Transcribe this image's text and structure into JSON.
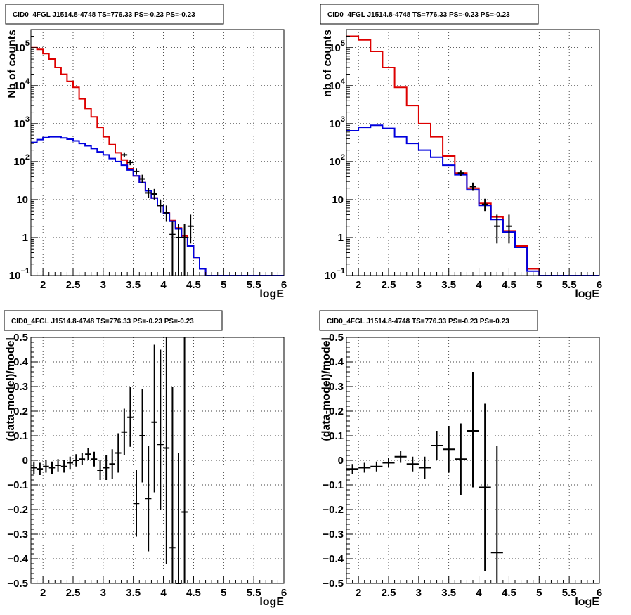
{
  "chart_data": [
    {
      "type": "line",
      "title": "CID0_4FGL J1514.8-4748 TS=776.33 PS=-0.23 PS=-0.23",
      "xlabel": "logE",
      "ylabel": "Nb of counts",
      "xlim": [
        1.8,
        6.0
      ],
      "ylim": [
        0.1,
        300000
      ],
      "yscale": "log",
      "grid": true,
      "xticks": [
        2,
        2.5,
        3,
        3.5,
        4,
        4.5,
        5,
        5.5,
        6
      ],
      "xtick_labels": [
        "2",
        "2.5",
        "3",
        "3.5",
        "4",
        "4.5",
        "5",
        "5.5",
        "6"
      ],
      "yticks": [
        0.1,
        1,
        10,
        100,
        1000,
        10000,
        100000
      ],
      "ytick_labels": [
        {
          "base": "10",
          "exp": "−1"
        },
        {
          "base": "1",
          "exp": ""
        },
        {
          "base": "10",
          "exp": ""
        },
        {
          "base": "10",
          "exp": "2"
        },
        {
          "base": "10",
          "exp": "3"
        },
        {
          "base": "10",
          "exp": "4"
        },
        {
          "base": "10",
          "exp": "5"
        }
      ],
      "bin_edges": [
        1.8,
        1.9,
        2.0,
        2.1,
        2.2,
        2.3,
        2.4,
        2.5,
        2.6,
        2.7,
        2.8,
        2.9,
        3.0,
        3.1,
        3.2,
        3.3,
        3.4,
        3.5,
        3.6,
        3.7,
        3.8,
        3.9,
        4.0,
        4.1,
        4.2,
        4.3,
        4.4,
        4.5,
        4.6,
        4.7,
        4.8,
        4.9,
        5.0,
        5.1,
        5.2,
        5.3,
        5.4,
        5.5,
        5.6,
        5.7,
        5.8,
        5.9,
        6.0
      ],
      "series": [
        {
          "color": "#dd0000",
          "values": [
            100000,
            90000,
            70000,
            50000,
            30000,
            20000,
            13000,
            9000,
            4500,
            2500,
            1500,
            800,
            450,
            280,
            170,
            110,
            65,
            42,
            28,
            17,
            11,
            7,
            4.5,
            2.8,
            1.8,
            1.1,
            0.6,
            0.3,
            0.15,
            0.1,
            0.1,
            0.1,
            0.1,
            0.1,
            0.1,
            0.1,
            0.1,
            0.1,
            0.1,
            0.1,
            0.1,
            0.1
          ]
        },
        {
          "color": "#0000dd",
          "values": [
            320,
            380,
            430,
            450,
            450,
            420,
            390,
            350,
            300,
            260,
            220,
            180,
            150,
            120,
            100,
            80,
            60,
            42,
            28,
            17,
            11,
            7,
            4.3,
            2.7,
            1.7,
            1.0,
            0.6,
            0.3,
            0.15,
            0.1,
            0.1,
            0.1,
            0.1,
            0.1,
            0.1,
            0.1,
            0.1,
            0.1,
            0.1,
            0.1,
            0.1,
            0.1
          ]
        }
      ],
      "points": [
        {
          "x": 3.35,
          "y": 150,
          "lo": 130,
          "hi": 175
        },
        {
          "x": 3.45,
          "y": 95,
          "lo": 80,
          "hi": 112
        },
        {
          "x": 3.55,
          "y": 55,
          "lo": 45,
          "hi": 67
        },
        {
          "x": 3.65,
          "y": 35,
          "lo": 27,
          "hi": 45
        },
        {
          "x": 3.75,
          "y": 15,
          "lo": 11,
          "hi": 20
        },
        {
          "x": 3.85,
          "y": 14,
          "lo": 10,
          "hi": 19
        },
        {
          "x": 3.95,
          "y": 7,
          "lo": 4.5,
          "hi": 10
        },
        {
          "x": 4.05,
          "y": 4.5,
          "lo": 2.6,
          "hi": 7
        },
        {
          "x": 4.15,
          "y": 1.2,
          "lo": 0.1,
          "hi": 2.6
        },
        {
          "x": 4.25,
          "y": 1,
          "lo": 0.1,
          "hi": 2.3
        },
        {
          "x": 4.35,
          "y": 1,
          "lo": 0.1,
          "hi": 2.3
        },
        {
          "x": 4.45,
          "y": 2,
          "lo": 0.7,
          "hi": 4
        }
      ]
    },
    {
      "type": "line",
      "title": "CID0_4FGL J1514.8-4748 TS=776.33 PS=-0.23 PS=-0.23",
      "xlabel": "logE",
      "ylabel": "nb of counts",
      "xlim": [
        1.8,
        6.0
      ],
      "ylim": [
        0.1,
        300000
      ],
      "yscale": "log",
      "grid": true,
      "xticks": [
        2,
        2.5,
        3,
        3.5,
        4,
        4.5,
        5,
        5.5,
        6
      ],
      "xtick_labels": [
        "2",
        "2.5",
        "3",
        "3.5",
        "4",
        "4.5",
        "5",
        "5.5",
        "6"
      ],
      "yticks": [
        0.1,
        1,
        10,
        100,
        1000,
        10000,
        100000
      ],
      "ytick_labels": [
        {
          "base": "10",
          "exp": "−1"
        },
        {
          "base": "1",
          "exp": ""
        },
        {
          "base": "10",
          "exp": ""
        },
        {
          "base": "10",
          "exp": "2"
        },
        {
          "base": "10",
          "exp": "3"
        },
        {
          "base": "10",
          "exp": "4"
        },
        {
          "base": "10",
          "exp": "5"
        }
      ],
      "bin_edges": [
        1.8,
        2.0,
        2.2,
        2.4,
        2.6,
        2.8,
        3.0,
        3.2,
        3.4,
        3.6,
        3.8,
        4.0,
        4.2,
        4.4,
        4.6,
        4.8,
        5.0,
        5.2,
        5.4,
        5.6,
        5.8,
        6.0
      ],
      "series": [
        {
          "color": "#dd0000",
          "values": [
            200000,
            160000,
            80000,
            30000,
            9000,
            3000,
            1000,
            450,
            140,
            50,
            20,
            8,
            3.5,
            1.5,
            0.6,
            0.15,
            0.1,
            0.1,
            0.1,
            0.1,
            0.1
          ]
        },
        {
          "color": "#0000dd",
          "values": [
            650,
            800,
            900,
            750,
            450,
            300,
            200,
            130,
            80,
            45,
            18,
            7,
            3,
            1.4,
            0.55,
            0.13,
            0.1,
            0.1,
            0.1,
            0.1,
            0.1
          ]
        }
      ],
      "points": [
        {
          "x": 3.7,
          "y": 50,
          "lo": 42,
          "hi": 59
        },
        {
          "x": 3.9,
          "y": 22,
          "lo": 17,
          "hi": 28
        },
        {
          "x": 4.1,
          "y": 7.5,
          "lo": 5,
          "hi": 10.5
        },
        {
          "x": 4.3,
          "y": 2,
          "lo": 0.7,
          "hi": 4
        },
        {
          "x": 4.5,
          "y": 2,
          "lo": 0.7,
          "hi": 4
        }
      ]
    },
    {
      "type": "scatter",
      "title": "CID0_4FGL J1514.8-4748 TS=776.33 PS=-0.23 PS=-0.23",
      "xlabel": "logE",
      "ylabel": "(data-model)/model",
      "xlim": [
        1.8,
        6.0
      ],
      "ylim": [
        -0.5,
        0.5
      ],
      "yscale": "linear",
      "grid": true,
      "xticks": [
        2,
        2.5,
        3,
        3.5,
        4,
        4.5,
        5,
        5.5,
        6
      ],
      "xtick_labels": [
        "2",
        "2.5",
        "3",
        "3.5",
        "4",
        "4.5",
        "5",
        "5.5",
        "6"
      ],
      "yticks": [
        -0.5,
        -0.4,
        -0.3,
        -0.2,
        -0.1,
        0,
        0.1,
        0.2,
        0.3,
        0.4,
        0.5
      ],
      "ytick_labels": [
        "−0.5",
        "−0.4",
        "−0.3",
        "−0.2",
        "−0.1",
        "0",
        "0.1",
        "0.2",
        "0.3",
        "0.4",
        "0.5"
      ],
      "half_width": 0.05,
      "points": [
        {
          "x": 1.85,
          "y": -0.03,
          "lo": -0.055,
          "hi": -0.005
        },
        {
          "x": 1.95,
          "y": -0.035,
          "lo": -0.06,
          "hi": -0.01
        },
        {
          "x": 2.05,
          "y": -0.025,
          "lo": -0.05,
          "hi": 0
        },
        {
          "x": 2.15,
          "y": -0.03,
          "lo": -0.055,
          "hi": -0.005
        },
        {
          "x": 2.25,
          "y": -0.02,
          "lo": -0.045,
          "hi": 0.005
        },
        {
          "x": 2.35,
          "y": -0.025,
          "lo": -0.05,
          "hi": 0
        },
        {
          "x": 2.45,
          "y": -0.01,
          "lo": -0.035,
          "hi": 0.015
        },
        {
          "x": 2.55,
          "y": 0,
          "lo": -0.025,
          "hi": 0.025
        },
        {
          "x": 2.65,
          "y": 0.005,
          "lo": -0.02,
          "hi": 0.03
        },
        {
          "x": 2.75,
          "y": 0.025,
          "lo": 0,
          "hi": 0.05
        },
        {
          "x": 2.85,
          "y": 0.005,
          "lo": -0.025,
          "hi": 0.035
        },
        {
          "x": 2.95,
          "y": -0.04,
          "lo": -0.08,
          "hi": 0
        },
        {
          "x": 3.05,
          "y": -0.03,
          "lo": -0.08,
          "hi": 0.02
        },
        {
          "x": 3.15,
          "y": -0.015,
          "lo": -0.075,
          "hi": 0.045
        },
        {
          "x": 3.25,
          "y": 0.03,
          "lo": -0.05,
          "hi": 0.11
        },
        {
          "x": 3.35,
          "y": 0.115,
          "lo": 0.02,
          "hi": 0.21
        },
        {
          "x": 3.45,
          "y": 0.175,
          "lo": 0.055,
          "hi": 0.3
        },
        {
          "x": 3.55,
          "y": -0.175,
          "lo": -0.31,
          "hi": -0.04
        },
        {
          "x": 3.65,
          "y": 0.1,
          "lo": -0.09,
          "hi": 0.29
        },
        {
          "x": 3.75,
          "y": -0.155,
          "lo": -0.37,
          "hi": 0.06
        },
        {
          "x": 3.85,
          "y": 0.155,
          "lo": -0.13,
          "hi": 0.47
        },
        {
          "x": 3.95,
          "y": 0.065,
          "lo": -0.2,
          "hi": 0.45
        },
        {
          "x": 4.05,
          "y": 0.05,
          "lo": -0.42,
          "hi": 0.5
        },
        {
          "x": 4.15,
          "y": -0.355,
          "lo": -0.5,
          "hi": 0.3
        },
        {
          "x": 4.25,
          "y": -0.5,
          "lo": -0.5,
          "hi": 0.03
        },
        {
          "x": 4.35,
          "y": -0.21,
          "lo": -0.5,
          "hi": 0.5
        }
      ]
    },
    {
      "type": "scatter",
      "title": "CID0_4FGL J1514.8-4748 TS=776.33 PS=-0.23 PS=-0.23",
      "xlabel": "logE",
      "ylabel": "(data-model)/model",
      "xlim": [
        1.8,
        6.0
      ],
      "ylim": [
        -0.5,
        0.5
      ],
      "yscale": "linear",
      "grid": true,
      "xticks": [
        2,
        2.5,
        3,
        3.5,
        4,
        4.5,
        5,
        5.5,
        6
      ],
      "xtick_labels": [
        "2",
        "2.5",
        "3",
        "3.5",
        "4",
        "4.5",
        "5",
        "5.5",
        "6"
      ],
      "yticks": [
        -0.5,
        -0.4,
        -0.3,
        -0.2,
        -0.1,
        0,
        0.1,
        0.2,
        0.3,
        0.4,
        0.5
      ],
      "ytick_labels": [
        "−0.5",
        "−0.4",
        "−0.3",
        "−0.2",
        "−0.1",
        "0",
        "0.1",
        "0.2",
        "0.3",
        "0.4",
        "0.5"
      ],
      "half_width": 0.1,
      "points": [
        {
          "x": 1.9,
          "y": -0.035,
          "lo": -0.055,
          "hi": -0.015
        },
        {
          "x": 2.1,
          "y": -0.03,
          "lo": -0.05,
          "hi": -0.01
        },
        {
          "x": 2.3,
          "y": -0.025,
          "lo": -0.045,
          "hi": -0.005
        },
        {
          "x": 2.5,
          "y": -0.01,
          "lo": -0.03,
          "hi": 0.01
        },
        {
          "x": 2.7,
          "y": 0.015,
          "lo": -0.01,
          "hi": 0.04
        },
        {
          "x": 2.9,
          "y": -0.015,
          "lo": -0.045,
          "hi": 0.015
        },
        {
          "x": 3.1,
          "y": -0.03,
          "lo": -0.075,
          "hi": 0.015
        },
        {
          "x": 3.3,
          "y": 0.06,
          "lo": 0,
          "hi": 0.12
        },
        {
          "x": 3.5,
          "y": 0.045,
          "lo": -0.05,
          "hi": 0.14
        },
        {
          "x": 3.7,
          "y": 0.005,
          "lo": -0.14,
          "hi": 0.15
        },
        {
          "x": 3.9,
          "y": 0.12,
          "lo": -0.11,
          "hi": 0.36
        },
        {
          "x": 4.1,
          "y": -0.11,
          "lo": -0.45,
          "hi": 0.23
        },
        {
          "x": 4.3,
          "y": -0.375,
          "lo": -0.5,
          "hi": 0.06
        }
      ]
    }
  ]
}
